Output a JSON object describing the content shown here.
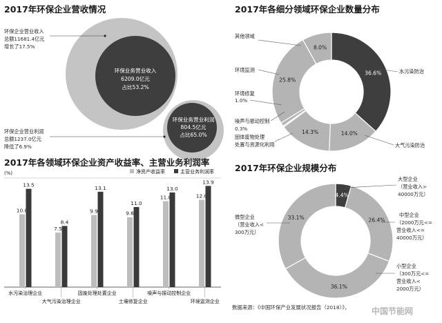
{
  "chart_data": [
    {
      "type": "bubble",
      "title": "2017年环保企业营收情况",
      "revenue_note": [
        "环保企业营业收入",
        "总额11681.4亿元",
        "增长了17.5%"
      ],
      "revenue_inner": [
        "环保业务营业收入",
        "6209.0亿元",
        "占比53.2%"
      ],
      "profit_note": [
        "环保企业营业利润",
        "总额1237.0亿元",
        "降低了6.9%"
      ],
      "profit_inner": [
        "环保业务营业利润",
        "804.5亿元",
        "占比65.0%"
      ],
      "values": {
        "revenue_total": 11681.4,
        "revenue_env": 6209.0,
        "profit_total": 1237.0,
        "profit_env": 804.5
      }
    },
    {
      "type": "pie",
      "title": "2017年各细分领域环保企业数量分布",
      "slices": [
        {
          "label": "水污染防治",
          "value": 36.6,
          "display": "36.6%",
          "color": "#3e3e3e"
        },
        {
          "label": "大气污染防治",
          "value": 14.0,
          "display": "14.0%",
          "color": "#b4b4b4"
        },
        {
          "label": "固体废物处理处置与资源化利用",
          "value": 14.3,
          "display": "14.3%",
          "color": "#b4b4b4"
        },
        {
          "label": "噪声与振动控制",
          "value": 0.3,
          "display": "0.3%",
          "color": "#b4b4b4"
        },
        {
          "label": "环境修复",
          "value": 1.0,
          "display": "1.0%",
          "color": "#b4b4b4"
        },
        {
          "label": "环境监测",
          "value": 25.8,
          "display": "25.8%",
          "color": "#b4b4b4"
        },
        {
          "label": "其他领域",
          "value": 8.0,
          "display": "8.0%",
          "color": "#b4b4b4"
        }
      ],
      "outer_labels": {
        "water": "水污染防治",
        "air": "大气污染防治",
        "solid": [
          "固体废物处理",
          "处置与资源化利用"
        ],
        "noise": "噪声与振动控制",
        "noise_val": "0.3%",
        "repair": "环境修复",
        "repair_val": "1.0%",
        "monitor": "环境监测",
        "other": "其他领域"
      }
    },
    {
      "type": "bar",
      "title": "2017年各领域环保企业资产收益率、主营业务利润率",
      "ylabel": "(%)",
      "legend_position": "top-right",
      "categories": [
        "水污染治理企业",
        "大气污染治理企业",
        "固废处理处置企业",
        "土壤修复企业",
        "噪声与振动控制企业",
        "环境监测企业"
      ],
      "series": [
        {
          "name": "净资产收益率",
          "values": [
            10.0,
            7.5,
            9.9,
            9.6,
            11.8,
            12.0
          ],
          "labels": [
            "10.0",
            "7.5",
            "9.9",
            "9.6",
            "11.8",
            "12.0"
          ],
          "color": "#bdbdbd"
        },
        {
          "name": "主营业务利润率",
          "values": [
            13.5,
            8.4,
            13.1,
            11.0,
            13.0,
            13.9
          ],
          "labels": [
            "13.5",
            "8.4",
            "13.1",
            "11.0",
            "13.0",
            "13.9"
          ],
          "color": "#3a3a3a"
        }
      ]
    },
    {
      "type": "pie",
      "title": "2017年环保企业规模分布",
      "slices": [
        {
          "label": "大型企业",
          "value": 4.4,
          "display": "4.4%",
          "color": "#3e3e3e"
        },
        {
          "label": "中型企业",
          "value": 26.4,
          "display": "26.4%",
          "color": "#b4b4b4"
        },
        {
          "label": "小型企业",
          "value": 36.1,
          "display": "36.1%",
          "color": "#b4b4b4"
        },
        {
          "label": "微型企业",
          "value": 33.1,
          "display": "33.1%",
          "color": "#b4b4b4"
        }
      ],
      "outer_labels": {
        "large": [
          "大型企业",
          "（营业收入>",
          "40000万元）"
        ],
        "medium": [
          "中型企业",
          "（2000万元<=",
          "营业收入<=",
          "40000万元）"
        ],
        "small": [
          "小型企业",
          "（300万元<=",
          "营业收入<",
          "2000万元）"
        ],
        "micro": [
          "微型企业",
          "（营业收入<",
          "300万元）"
        ]
      }
    }
  ],
  "footer": {
    "source": "数据来源：《中国环保产业发展状况报告（2018）》，"
  },
  "watermark": "中国节能网"
}
